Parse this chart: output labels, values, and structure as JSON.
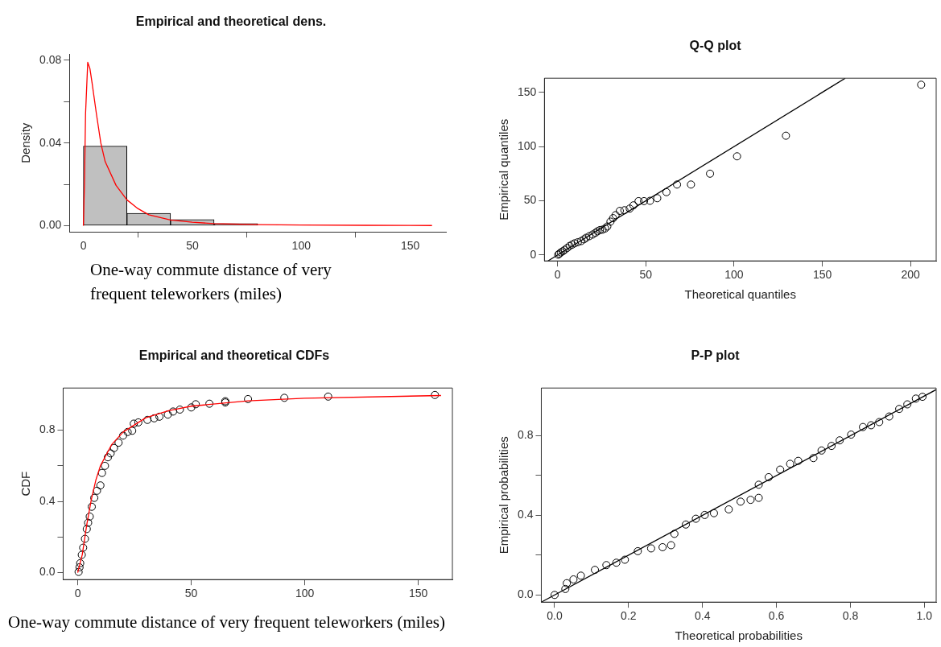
{
  "chart_data": [
    {
      "type": "histogram",
      "title": "Empirical and theoretical dens.",
      "xlabel": "One-way commute distance of very frequent teleworkers (miles)",
      "ylabel": "Density",
      "bins": [
        0,
        20,
        40,
        60,
        80,
        100,
        120,
        140,
        160
      ],
      "series": [
        {
          "type": "histogram",
          "color": "#c0c0c0",
          "values": [
            0.0385,
            0.006,
            0.003,
            0.001,
            null,
            null,
            0,
            null
          ]
        },
        {
          "type": "line",
          "color": "#ff0000",
          "x": [
            0,
            0.5,
            1,
            2,
            3,
            4,
            6,
            8,
            10,
            15,
            20,
            25,
            30,
            40,
            50,
            60,
            80,
            100,
            130,
            160
          ],
          "values": [
            0,
            0.02,
            0.054,
            0.079,
            0.076,
            0.069,
            0.054,
            0.04,
            0.031,
            0.0195,
            0.0125,
            0.0083,
            0.0053,
            0.0028,
            0.0017,
            0.001,
            0.0005,
            0.0003,
            0.0002,
            0.0001
          ]
        }
      ],
      "xlim": [
        -6.4,
        166.4
      ],
      "ylim": [
        -0.003,
        0.083
      ],
      "xticks": [
        0,
        50,
        100,
        150
      ],
      "yticks": [
        {
          "value": 0,
          "label": "0.00"
        },
        {
          "value": 0.02,
          "label": null
        },
        {
          "value": 0.04,
          "label": "0.04"
        },
        {
          "value": 0.06,
          "label": null
        },
        {
          "value": 0.08,
          "label": "0.08"
        }
      ],
      "grid": false
    },
    {
      "type": "scatter",
      "title": "Q-Q plot",
      "xlabel": "Theoretical quantiles",
      "ylabel": "Empirical quantiles",
      "series": [
        {
          "type": "scatter",
          "marker": "circle",
          "color": "#000000",
          "x": [
            0.4,
            1,
            1.9,
            3,
            4.1,
            5.5,
            6.9,
            8.3,
            9.7,
            11.5,
            13.4,
            15,
            16.2,
            18,
            19.9,
            21.5,
            22.7,
            24,
            25.5,
            27,
            28.2,
            30,
            31.5,
            32.9,
            35.3,
            37.9,
            40.9,
            43,
            45.9,
            49,
            52.4,
            56.5,
            61.7,
            67.7,
            75.6,
            86.4,
            101.7,
            129.4,
            206
          ],
          "values": [
            0.3,
            1.2,
            2.4,
            3.5,
            4.8,
            6.5,
            8.4,
            9.6,
            10.8,
            11.8,
            12.9,
            14.5,
            15.9,
            17.4,
            18.9,
            20.5,
            21.9,
            23,
            23.4,
            24.5,
            26.3,
            30.8,
            34,
            36.8,
            40.7,
            41.3,
            42.8,
            45.8,
            49.7,
            49.7,
            50,
            52.4,
            58,
            65,
            65,
            75,
            91,
            110,
            157
          ]
        },
        {
          "type": "line",
          "color": "#000000",
          "x": [
            -5.4,
            163
          ],
          "values": [
            -5.4,
            163
          ]
        }
      ],
      "xlim": [
        -7.4,
        214.5
      ],
      "ylim": [
        -5.4,
        163
      ],
      "xticks": [
        0,
        50,
        100,
        150,
        200
      ],
      "yticks": [
        0,
        50,
        100,
        150
      ],
      "grid": false
    },
    {
      "type": "scatter",
      "title": "Empirical and theoretical CDFs",
      "xlabel": "One-way commute distance of very frequent teleworkers (miles)",
      "ylabel": "CDF",
      "series": [
        {
          "type": "scatter",
          "marker": "circle",
          "color": "#000000",
          "x": [
            0.4,
            0.8,
            1.1,
            1.8,
            2.4,
            3.2,
            4,
            4.6,
            5.3,
            6.2,
            7.3,
            8.5,
            10,
            10.7,
            12,
            13.3,
            14.5,
            16,
            18,
            20,
            22,
            24,
            24.7,
            26.7,
            30.7,
            33.7,
            36,
            39.7,
            42,
            45,
            50,
            52,
            58,
            65,
            65,
            75,
            91,
            110.3,
            157.3
          ],
          "values": [
            0.004,
            0.03,
            0.053,
            0.1,
            0.14,
            0.19,
            0.245,
            0.28,
            0.315,
            0.37,
            0.42,
            0.46,
            0.49,
            0.56,
            0.6,
            0.648,
            0.67,
            0.7,
            0.73,
            0.77,
            0.79,
            0.797,
            0.837,
            0.844,
            0.858,
            0.867,
            0.876,
            0.888,
            0.905,
            0.916,
            0.928,
            0.946,
            0.949,
            0.956,
            0.963,
            0.975,
            0.982,
            0.989,
            0.998
          ]
        },
        {
          "type": "line",
          "color": "#ff0000",
          "x": [
            0,
            2,
            4,
            6,
            8,
            10,
            15,
            20,
            30,
            40,
            50,
            75,
            100,
            160
          ],
          "values": [
            0,
            0.1,
            0.27,
            0.41,
            0.52,
            0.6,
            0.72,
            0.79,
            0.87,
            0.91,
            0.935,
            0.965,
            0.98,
            0.995
          ]
        }
      ],
      "xlim": [
        -6.4,
        165
      ],
      "ylim": [
        -0.039,
        1.037
      ],
      "xticks": [
        0,
        50,
        100,
        150
      ],
      "yticks": [
        {
          "value": 0,
          "label": "0.0"
        },
        {
          "value": 0.2,
          "label": null
        },
        {
          "value": 0.4,
          "label": "0.4"
        },
        {
          "value": 0.6,
          "label": null
        },
        {
          "value": 0.8,
          "label": "0.8"
        }
      ],
      "grid": false
    },
    {
      "type": "scatter",
      "title": "P-P plot",
      "xlabel": "Theoretical probabilities",
      "ylabel": "Empirical probabilities",
      "series": [
        {
          "type": "scatter",
          "marker": "circle",
          "color": "#000000",
          "x": [
            0,
            0.029,
            0.033,
            0.051,
            0.071,
            0.109,
            0.14,
            0.167,
            0.19,
            0.225,
            0.261,
            0.292,
            0.315,
            0.324,
            0.355,
            0.382,
            0.406,
            0.431,
            0.471,
            0.503,
            0.53,
            0.552,
            0.552,
            0.579,
            0.61,
            0.637,
            0.659,
            0.7,
            0.722,
            0.749,
            0.771,
            0.802,
            0.834,
            0.856,
            0.878,
            0.905,
            0.932,
            0.954,
            0.977,
            0.995
          ],
          "values": [
            0,
            0.03,
            0.059,
            0.078,
            0.097,
            0.126,
            0.15,
            0.162,
            0.177,
            0.22,
            0.234,
            0.24,
            0.25,
            0.307,
            0.354,
            0.383,
            0.402,
            0.411,
            0.43,
            0.469,
            0.478,
            0.488,
            0.554,
            0.592,
            0.63,
            0.659,
            0.674,
            0.688,
            0.726,
            0.749,
            0.777,
            0.806,
            0.844,
            0.853,
            0.869,
            0.897,
            0.935,
            0.958,
            0.987,
            0.996
          ]
        },
        {
          "type": "line",
          "color": "#000000",
          "x": [
            -0.036,
            1.032
          ],
          "values": [
            -0.036,
            1.032
          ]
        }
      ],
      "xlim": [
        -0.036,
        1.032
      ],
      "ylim": [
        -0.036,
        1.04
      ],
      "xticks": [
        {
          "value": 0,
          "label": "0.0"
        },
        0.2,
        0.4,
        0.6,
        0.8,
        {
          "value": 1,
          "label": "1.0"
        }
      ],
      "yticks": [
        {
          "value": 0,
          "label": "0.0"
        },
        {
          "value": 0.2,
          "label": null
        },
        {
          "value": 0.4,
          "label": "0.4"
        },
        {
          "value": 0.6,
          "label": null
        },
        {
          "value": 0.8,
          "label": "0.8"
        }
      ],
      "grid": false
    }
  ]
}
